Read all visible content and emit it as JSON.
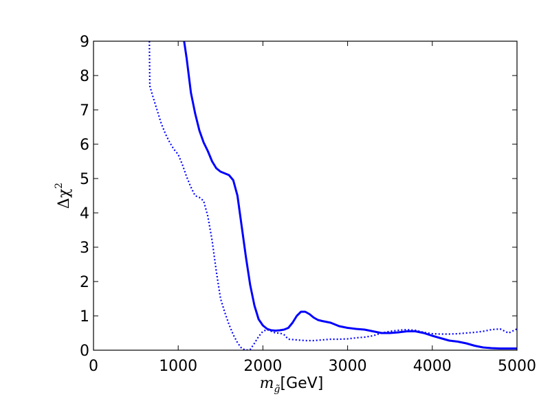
{
  "chart_data": {
    "type": "line",
    "title": "",
    "xlabel": {
      "var": "m",
      "sub": "g̃",
      "unit": "[GeV]"
    },
    "ylabel": {
      "prefix": "Δχ",
      "sup": "2"
    },
    "xlim": [
      0,
      5000
    ],
    "ylim": [
      0,
      9
    ],
    "x_ticks": [
      0,
      1000,
      2000,
      3000,
      4000,
      5000
    ],
    "y_ticks": [
      0,
      1,
      2,
      3,
      4,
      5,
      6,
      7,
      8,
      9
    ],
    "grid": false,
    "legend": "none",
    "colors": {
      "series": "#0000ff"
    },
    "series": [
      {
        "style": "solid",
        "x": [
          1070,
          1100,
          1150,
          1200,
          1250,
          1300,
          1350,
          1400,
          1450,
          1500,
          1550,
          1600,
          1650,
          1700,
          1750,
          1800,
          1850,
          1900,
          1950,
          2000,
          2050,
          2100,
          2150,
          2200,
          2250,
          2300,
          2350,
          2400,
          2450,
          2500,
          2550,
          2600,
          2650,
          2700,
          2800,
          2900,
          3000,
          3100,
          3200,
          3300,
          3400,
          3500,
          3600,
          3700,
          3800,
          3900,
          4000,
          4100,
          4200,
          4300,
          4400,
          4500,
          4600,
          4700,
          4800,
          4900,
          5000
        ],
        "y": [
          9.0,
          8.5,
          7.5,
          6.9,
          6.4,
          6.05,
          5.8,
          5.5,
          5.3,
          5.2,
          5.15,
          5.1,
          4.95,
          4.5,
          3.6,
          2.7,
          1.9,
          1.3,
          0.9,
          0.72,
          0.62,
          0.58,
          0.57,
          0.58,
          0.6,
          0.65,
          0.8,
          1.0,
          1.12,
          1.12,
          1.05,
          0.95,
          0.88,
          0.85,
          0.8,
          0.7,
          0.65,
          0.62,
          0.6,
          0.55,
          0.5,
          0.5,
          0.52,
          0.55,
          0.55,
          0.5,
          0.42,
          0.35,
          0.28,
          0.25,
          0.2,
          0.13,
          0.08,
          0.06,
          0.05,
          0.05,
          0.05
        ]
      },
      {
        "style": "dotted",
        "x": [
          660,
          665,
          700,
          750,
          800,
          850,
          900,
          950,
          1000,
          1050,
          1100,
          1150,
          1200,
          1250,
          1300,
          1350,
          1400,
          1450,
          1500,
          1550,
          1600,
          1650,
          1700,
          1750,
          1800,
          1850,
          1900,
          1950,
          2000,
          2050,
          2100,
          2150,
          2200,
          2250,
          2300,
          2400,
          2500,
          2600,
          2700,
          2800,
          2900,
          3000,
          3100,
          3200,
          3300,
          3400,
          3500,
          3600,
          3700,
          3800,
          3900,
          4000,
          4100,
          4200,
          4300,
          4400,
          4500,
          4600,
          4700,
          4800,
          4900,
          5000
        ],
        "y": [
          9.0,
          7.7,
          7.4,
          7.0,
          6.6,
          6.3,
          6.05,
          5.85,
          5.7,
          5.4,
          5.05,
          4.75,
          4.5,
          4.45,
          4.35,
          3.9,
          3.2,
          2.3,
          1.5,
          1.1,
          0.75,
          0.45,
          0.22,
          0.05,
          0.0,
          0.02,
          0.2,
          0.4,
          0.55,
          0.6,
          0.55,
          0.5,
          0.5,
          0.45,
          0.32,
          0.3,
          0.28,
          0.28,
          0.3,
          0.32,
          0.32,
          0.33,
          0.36,
          0.38,
          0.42,
          0.5,
          0.55,
          0.58,
          0.6,
          0.58,
          0.52,
          0.48,
          0.47,
          0.47,
          0.48,
          0.5,
          0.52,
          0.55,
          0.6,
          0.62,
          0.5,
          0.62
        ]
      }
    ]
  }
}
